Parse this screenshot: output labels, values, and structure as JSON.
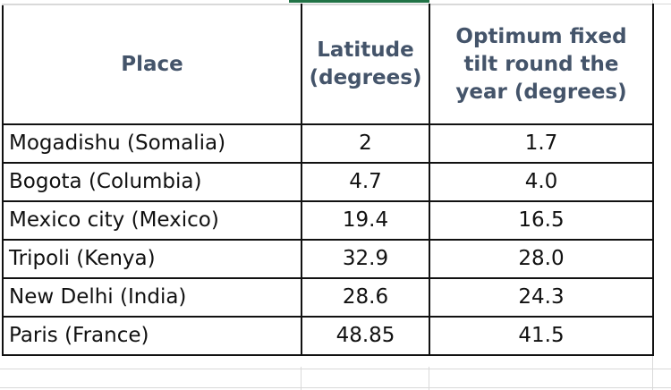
{
  "table": {
    "header": [
      "Place",
      "Latitude (degrees)",
      "Optimum fixed tilt round the year (degrees)"
    ],
    "rows": [
      [
        "Mogadishu (Somalia)",
        "2",
        "1.7"
      ],
      [
        "Bogota (Columbia)",
        "4.7",
        "4.0"
      ],
      [
        "Mexico city (Mexico)",
        "19.4",
        "16.5"
      ],
      [
        "Tripoli (Kenya)",
        "32.9",
        "28.0"
      ],
      [
        "New Delhi (India)",
        "28.6",
        "24.3"
      ],
      [
        "Paris (France)",
        "48.85",
        "41.5"
      ]
    ]
  }
}
